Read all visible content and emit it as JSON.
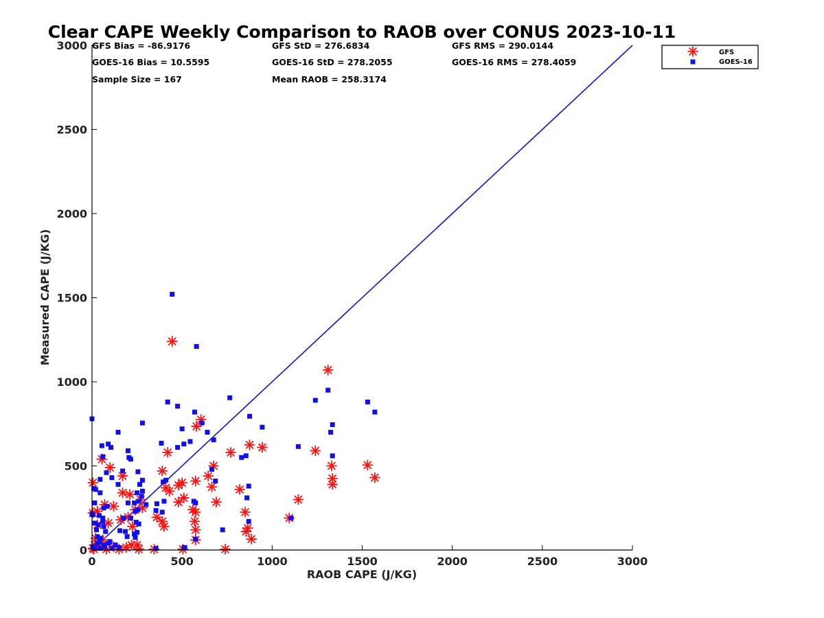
{
  "chart_data": {
    "type": "scatter",
    "title": "Clear CAPE Weekly Comparison to RAOB over CONUS 2023-10-11",
    "xlabel": "RAOB CAPE (J/KG)",
    "ylabel": "Measured CAPE (J/KG)",
    "xlim": [
      0,
      3000
    ],
    "ylim": [
      0,
      3000
    ],
    "xticks": [
      0,
      500,
      1000,
      1500,
      2000,
      2500,
      3000
    ],
    "yticks": [
      0,
      500,
      1000,
      1500,
      2000,
      2500,
      3000
    ],
    "grid": false,
    "legend_position": "top-right",
    "one_to_one_line": {
      "x": [
        0,
        3000
      ],
      "y": [
        0,
        3000
      ],
      "color": "#1010d0"
    },
    "stats": [
      "GFS Bias = -86.9176",
      "GFS StD = 276.6834",
      "GFS RMS = 290.0144",
      "GOES-16 Bias = 10.5595",
      "GOES-16 StD = 278.2055",
      "GOES-16 RMS = 278.4059",
      "Sample Size = 167",
      "Mean RAOB = 258.3174"
    ],
    "series": [
      {
        "name": "GFS",
        "marker": "asterisk",
        "color": "#ff1010",
        "points": [
          [
            445,
            1240
          ],
          [
            1310,
            1070
          ],
          [
            605,
            775
          ],
          [
            580,
            735
          ],
          [
            945,
            610
          ],
          [
            875,
            625
          ],
          [
            1240,
            590
          ],
          [
            420,
            580
          ],
          [
            770,
            580
          ],
          [
            1530,
            505
          ],
          [
            1330,
            500
          ],
          [
            675,
            500
          ],
          [
            55,
            540
          ],
          [
            100,
            490
          ],
          [
            1570,
            430
          ],
          [
            1335,
            425
          ],
          [
            1335,
            390
          ],
          [
            390,
            470
          ],
          [
            645,
            440
          ],
          [
            170,
            440
          ],
          [
            575,
            410
          ],
          [
            500,
            400
          ],
          [
            480,
            385
          ],
          [
            410,
            370
          ],
          [
            665,
            375
          ],
          [
            5,
            400
          ],
          [
            820,
            360
          ],
          [
            170,
            340
          ],
          [
            210,
            330
          ],
          [
            430,
            350
          ],
          [
            1145,
            300
          ],
          [
            690,
            285
          ],
          [
            270,
            300
          ],
          [
            480,
            285
          ],
          [
            510,
            310
          ],
          [
            280,
            250
          ],
          [
            120,
            260
          ],
          [
            70,
            270
          ],
          [
            850,
            225
          ],
          [
            560,
            240
          ],
          [
            575,
            225
          ],
          [
            240,
            240
          ],
          [
            30,
            230
          ],
          [
            5,
            220
          ],
          [
            200,
            195
          ],
          [
            360,
            195
          ],
          [
            1095,
            190
          ],
          [
            160,
            180
          ],
          [
            390,
            170
          ],
          [
            570,
            170
          ],
          [
            400,
            140
          ],
          [
            90,
            160
          ],
          [
            225,
            140
          ],
          [
            865,
            130
          ],
          [
            855,
            110
          ],
          [
            575,
            120
          ],
          [
            885,
            65
          ],
          [
            575,
            60
          ],
          [
            60,
            60
          ],
          [
            40,
            30
          ],
          [
            5,
            10
          ],
          [
            15,
            30
          ],
          [
            20,
            70
          ],
          [
            30,
            150
          ],
          [
            250,
            30
          ],
          [
            220,
            30
          ],
          [
            120,
            20
          ],
          [
            505,
            5
          ],
          [
            740,
            5
          ],
          [
            345,
            5
          ],
          [
            10,
            5
          ],
          [
            80,
            5
          ],
          [
            150,
            5
          ],
          [
            260,
            5
          ],
          [
            190,
            15
          ]
        ]
      },
      {
        "name": "GOES-16",
        "marker": "square",
        "color": "#1010ee",
        "points": [
          [
            445,
            1520
          ],
          [
            580,
            1210
          ],
          [
            1310,
            950
          ],
          [
            765,
            905
          ],
          [
            1240,
            890
          ],
          [
            420,
            880
          ],
          [
            1530,
            880
          ],
          [
            475,
            855
          ],
          [
            1570,
            820
          ],
          [
            570,
            820
          ],
          [
            875,
            795
          ],
          [
            0,
            780
          ],
          [
            610,
            755
          ],
          [
            280,
            755
          ],
          [
            945,
            730
          ],
          [
            1335,
            745
          ],
          [
            1325,
            700
          ],
          [
            500,
            720
          ],
          [
            145,
            700
          ],
          [
            640,
            700
          ],
          [
            675,
            655
          ],
          [
            545,
            645
          ],
          [
            385,
            635
          ],
          [
            510,
            630
          ],
          [
            90,
            630
          ],
          [
            55,
            620
          ],
          [
            105,
            610
          ],
          [
            475,
            610
          ],
          [
            1145,
            615
          ],
          [
            200,
            590
          ],
          [
            205,
            550
          ],
          [
            215,
            540
          ],
          [
            830,
            550
          ],
          [
            855,
            560
          ],
          [
            1335,
            560
          ],
          [
            60,
            555
          ],
          [
            170,
            470
          ],
          [
            255,
            465
          ],
          [
            80,
            460
          ],
          [
            110,
            430
          ],
          [
            45,
            420
          ],
          [
            665,
            480
          ],
          [
            280,
            415
          ],
          [
            410,
            415
          ],
          [
            395,
            405
          ],
          [
            685,
            410
          ],
          [
            145,
            390
          ],
          [
            265,
            390
          ],
          [
            870,
            380
          ],
          [
            280,
            350
          ],
          [
            10,
            365
          ],
          [
            20,
            360
          ],
          [
            45,
            340
          ],
          [
            250,
            340
          ],
          [
            275,
            320
          ],
          [
            260,
            290
          ],
          [
            200,
            280
          ],
          [
            235,
            280
          ],
          [
            300,
            270
          ],
          [
            860,
            310
          ],
          [
            360,
            275
          ],
          [
            400,
            290
          ],
          [
            565,
            290
          ],
          [
            575,
            280
          ],
          [
            65,
            250
          ],
          [
            85,
            260
          ],
          [
            15,
            280
          ],
          [
            255,
            240
          ],
          [
            240,
            230
          ],
          [
            355,
            235
          ],
          [
            390,
            225
          ],
          [
            0,
            215
          ],
          [
            5,
            210
          ],
          [
            40,
            205
          ],
          [
            60,
            190
          ],
          [
            175,
            190
          ],
          [
            215,
            190
          ],
          [
            870,
            170
          ],
          [
            60,
            170
          ],
          [
            245,
            165
          ],
          [
            15,
            160
          ],
          [
            260,
            155
          ],
          [
            35,
            150
          ],
          [
            65,
            140
          ],
          [
            155,
            115
          ],
          [
            185,
            110
          ],
          [
            250,
            105
          ],
          [
            235,
            95
          ],
          [
            195,
            80
          ],
          [
            240,
            75
          ],
          [
            725,
            120
          ],
          [
            1105,
            190
          ],
          [
            575,
            65
          ],
          [
            5,
            20
          ],
          [
            15,
            10
          ],
          [
            30,
            40
          ],
          [
            40,
            50
          ],
          [
            50,
            70
          ],
          [
            70,
            20
          ],
          [
            90,
            40
          ],
          [
            110,
            10
          ],
          [
            130,
            30
          ],
          [
            150,
            15
          ],
          [
            45,
            10
          ],
          [
            65,
            30
          ],
          [
            100,
            50
          ],
          [
            515,
            15
          ],
          [
            355,
            10
          ],
          [
            25,
            120
          ],
          [
            75,
            110
          ],
          [
            30,
            80
          ]
        ]
      }
    ]
  }
}
